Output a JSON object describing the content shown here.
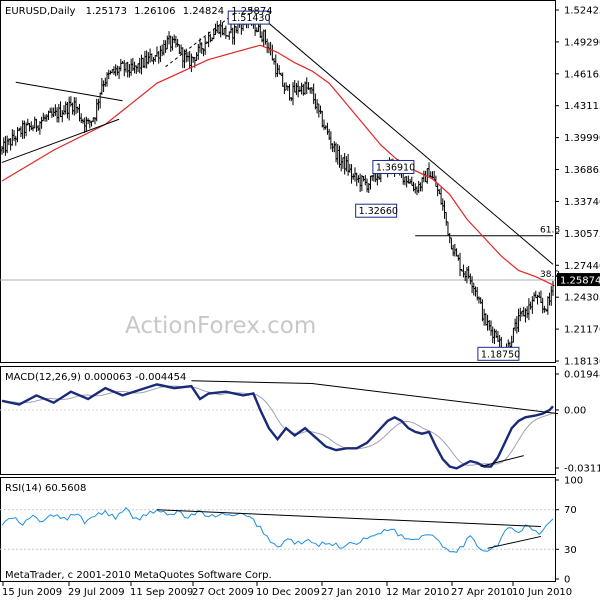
{
  "header": {
    "symbol": "EURUSD,Daily",
    "open": "1.25173",
    "high": "1.26106",
    "low": "1.24824",
    "close": "1.25874"
  },
  "watermark": "ActionForex.com",
  "copyright": "MetaTrader, c 2001-2010 MetaQuotes Software Corp.",
  "colors": {
    "candles": "#000000",
    "ma": "#e32626",
    "macd": "#1a2a7a",
    "signal": "#a0a0b8",
    "rsi": "#1e90e0",
    "price_highlight": "#000000"
  },
  "chart_data": [
    {
      "type": "candlestick",
      "title": "EURUSD,Daily",
      "ylim": [
        1.181,
        1.528
      ],
      "price_ticks": [
        "1.52425",
        "1.49290",
        "1.46165",
        "1.43115",
        "1.39990",
        "1.36865",
        "1.33740",
        "1.30575",
        "1.27440",
        "1.24305",
        "1.21170",
        "1.18130"
      ],
      "current_price": "1.25874",
      "x_labels": [
        "15 Jun 2009",
        "29 Jul 2009",
        "11 Sep 2009",
        "27 Oct 2009",
        "10 Dec 2009",
        "27 Jan 2010",
        "12 Mar 2010",
        "27 Apr 2010",
        "10 Jun 2010"
      ],
      "close_path": [
        [
          0,
          1.385
        ],
        [
          6,
          1.395
        ],
        [
          12,
          1.405
        ],
        [
          18,
          1.408
        ],
        [
          24,
          1.415
        ],
        [
          30,
          1.418
        ],
        [
          36,
          1.425
        ],
        [
          42,
          1.43
        ],
        [
          46,
          1.416
        ],
        [
          50,
          1.41
        ],
        [
          54,
          1.42
        ],
        [
          58,
          1.45
        ],
        [
          64,
          1.46
        ],
        [
          70,
          1.465
        ],
        [
          76,
          1.462
        ],
        [
          82,
          1.47
        ],
        [
          90,
          1.478
        ],
        [
          96,
          1.49
        ],
        [
          102,
          1.485
        ],
        [
          108,
          1.47
        ],
        [
          114,
          1.48
        ],
        [
          120,
          1.495
        ],
        [
          126,
          1.505
        ],
        [
          132,
          1.495
        ],
        [
          138,
          1.508
        ],
        [
          144,
          1.513
        ],
        [
          148,
          1.503
        ],
        [
          152,
          1.496
        ],
        [
          156,
          1.48
        ],
        [
          160,
          1.46
        ],
        [
          164,
          1.445
        ],
        [
          168,
          1.44
        ],
        [
          172,
          1.445
        ],
        [
          176,
          1.446
        ],
        [
          180,
          1.44
        ],
        [
          184,
          1.42
        ],
        [
          188,
          1.405
        ],
        [
          192,
          1.39
        ],
        [
          196,
          1.375
        ],
        [
          200,
          1.37
        ],
        [
          204,
          1.358
        ],
        [
          208,
          1.355
        ],
        [
          212,
          1.352
        ],
        [
          216,
          1.357
        ],
        [
          220,
          1.364
        ],
        [
          224,
          1.37
        ],
        [
          228,
          1.369
        ],
        [
          232,
          1.362
        ],
        [
          236,
          1.356
        ],
        [
          240,
          1.348
        ],
        [
          244,
          1.353
        ],
        [
          248,
          1.365
        ],
        [
          252,
          1.35
        ],
        [
          256,
          1.33
        ],
        [
          260,
          1.3
        ],
        [
          264,
          1.28
        ],
        [
          268,
          1.267
        ],
        [
          272,
          1.262
        ],
        [
          276,
          1.245
        ],
        [
          280,
          1.22
        ],
        [
          284,
          1.21
        ],
        [
          288,
          1.205
        ],
        [
          290,
          1.19
        ],
        [
          294,
          1.195
        ],
        [
          298,
          1.212
        ],
        [
          302,
          1.225
        ],
        [
          306,
          1.232
        ],
        [
          310,
          1.243
        ],
        [
          314,
          1.23
        ],
        [
          318,
          1.238
        ],
        [
          320,
          1.2587
        ]
      ],
      "ma_path": [
        [
          0,
          1.355
        ],
        [
          30,
          1.385
        ],
        [
          60,
          1.41
        ],
        [
          90,
          1.45
        ],
        [
          120,
          1.473
        ],
        [
          150,
          1.487
        ],
        [
          160,
          1.48
        ],
        [
          170,
          1.47
        ],
        [
          180,
          1.462
        ],
        [
          190,
          1.45
        ],
        [
          200,
          1.43
        ],
        [
          210,
          1.41
        ],
        [
          220,
          1.39
        ],
        [
          230,
          1.375
        ],
        [
          240,
          1.365
        ],
        [
          250,
          1.357
        ],
        [
          260,
          1.342
        ],
        [
          270,
          1.318
        ],
        [
          280,
          1.3
        ],
        [
          290,
          1.282
        ],
        [
          300,
          1.268
        ],
        [
          310,
          1.262
        ],
        [
          320,
          1.254
        ]
      ],
      "trendlines": [
        {
          "from": [
            0,
            1.373
          ],
          "to": [
            68,
            1.415
          ]
        },
        {
          "from": [
            8,
            1.451
          ],
          "to": [
            70,
            1.433
          ]
        },
        {
          "from": [
            146,
            1.521
          ],
          "to": [
            320,
            1.274
          ]
        }
      ],
      "dashed_channel": {
        "from": [
          95,
          1.466
        ],
        "to": [
          135,
          1.518
        ]
      },
      "horizontal_levels": [
        {
          "label": "61.8",
          "value": 1.3018
        },
        {
          "label": "38.2",
          "value": 1.2587
        }
      ],
      "annotations": [
        {
          "text": "1.51430",
          "x": 143,
          "y": 1.5143
        },
        {
          "text": "1.36910",
          "x": 227,
          "y": 1.3691
        },
        {
          "text": "1.32660",
          "x": 217,
          "y": 1.3266
        },
        {
          "text": "1.18750",
          "x": 288,
          "y": 1.1875
        }
      ]
    },
    {
      "type": "line",
      "title": "MACD(12,26,9) 0.000063 -0.004454",
      "ylim": [
        -0.034,
        0.023
      ],
      "y_ticks": [
        "0.019486",
        "0.00",
        "-0.03114"
      ],
      "series": [
        {
          "name": "MACD",
          "points": [
            [
              0,
              0.005
            ],
            [
              10,
              0.003
            ],
            [
              20,
              0.008
            ],
            [
              30,
              0.004
            ],
            [
              40,
              0.01
            ],
            [
              50,
              0.006
            ],
            [
              60,
              0.012
            ],
            [
              70,
              0.008
            ],
            [
              80,
              0.011
            ],
            [
              90,
              0.014
            ],
            [
              100,
              0.012
            ],
            [
              110,
              0.013
            ],
            [
              115,
              0.006
            ],
            [
              120,
              0.009
            ],
            [
              130,
              0.01
            ],
            [
              140,
              0.008
            ],
            [
              146,
              0.009
            ],
            [
              150,
              0.0
            ],
            [
              155,
              -0.01
            ],
            [
              160,
              -0.016
            ],
            [
              165,
              -0.01
            ],
            [
              170,
              -0.014
            ],
            [
              176,
              -0.01
            ],
            [
              182,
              -0.015
            ],
            [
              188,
              -0.02
            ],
            [
              194,
              -0.022
            ],
            [
              200,
              -0.021
            ],
            [
              206,
              -0.021
            ],
            [
              212,
              -0.018
            ],
            [
              218,
              -0.012
            ],
            [
              224,
              -0.006
            ],
            [
              228,
              -0.004
            ],
            [
              232,
              -0.006
            ],
            [
              236,
              -0.01
            ],
            [
              240,
              -0.012
            ],
            [
              244,
              -0.013
            ],
            [
              248,
              -0.012
            ],
            [
              252,
              -0.02
            ],
            [
              256,
              -0.027
            ],
            [
              260,
              -0.031
            ],
            [
              264,
              -0.032
            ],
            [
              268,
              -0.03
            ],
            [
              272,
              -0.028
            ],
            [
              276,
              -0.029
            ],
            [
              280,
              -0.031
            ],
            [
              284,
              -0.031
            ],
            [
              288,
              -0.026
            ],
            [
              292,
              -0.018
            ],
            [
              296,
              -0.01
            ],
            [
              300,
              -0.006
            ],
            [
              304,
              -0.004
            ],
            [
              310,
              -0.003
            ],
            [
              314,
              -0.002
            ],
            [
              318,
              0.0
            ],
            [
              320,
              0.002
            ]
          ]
        }
      ]
    },
    {
      "type": "line",
      "title": "RSI(14) 60.5608",
      "ylim": [
        0,
        100
      ],
      "y_ticks": [
        "100",
        "70",
        "30",
        "0"
      ],
      "series": [
        {
          "name": "RSI",
          "points": [
            [
              0,
              55
            ],
            [
              6,
              62
            ],
            [
              12,
              55
            ],
            [
              18,
              63
            ],
            [
              24,
              58
            ],
            [
              30,
              65
            ],
            [
              36,
              60
            ],
            [
              42,
              66
            ],
            [
              48,
              58
            ],
            [
              54,
              64
            ],
            [
              60,
              68
            ],
            [
              66,
              62
            ],
            [
              72,
              70
            ],
            [
              78,
              60
            ],
            [
              84,
              66
            ],
            [
              90,
              70
            ],
            [
              96,
              64
            ],
            [
              102,
              68
            ],
            [
              108,
              62
            ],
            [
              114,
              68
            ],
            [
              120,
              62
            ],
            [
              126,
              66
            ],
            [
              132,
              63
            ],
            [
              138,
              65
            ],
            [
              144,
              62
            ],
            [
              150,
              52
            ],
            [
              156,
              38
            ],
            [
              160,
              32
            ],
            [
              166,
              40
            ],
            [
              172,
              36
            ],
            [
              178,
              38
            ],
            [
              184,
              34
            ],
            [
              190,
              38
            ],
            [
              196,
              32
            ],
            [
              202,
              36
            ],
            [
              208,
              38
            ],
            [
              214,
              42
            ],
            [
              220,
              48
            ],
            [
              226,
              52
            ],
            [
              230,
              45
            ],
            [
              236,
              40
            ],
            [
              242,
              42
            ],
            [
              248,
              46
            ],
            [
              252,
              42
            ],
            [
              256,
              34
            ],
            [
              260,
              30
            ],
            [
              264,
              28
            ],
            [
              268,
              35
            ],
            [
              272,
              42
            ],
            [
              276,
              33
            ],
            [
              280,
              30
            ],
            [
              284,
              30
            ],
            [
              288,
              36
            ],
            [
              292,
              48
            ],
            [
              296,
              52
            ],
            [
              300,
              45
            ],
            [
              304,
              54
            ],
            [
              308,
              50
            ],
            [
              312,
              46
            ],
            [
              316,
              53
            ],
            [
              320,
              60.5608
            ]
          ]
        }
      ],
      "levels": [
        70,
        30
      ],
      "trendlines": [
        {
          "from": [
            90,
            70
          ],
          "to": [
            313,
            53
          ]
        },
        {
          "from": [
            282,
            31
          ],
          "to": [
            313,
            43
          ]
        }
      ]
    }
  ]
}
